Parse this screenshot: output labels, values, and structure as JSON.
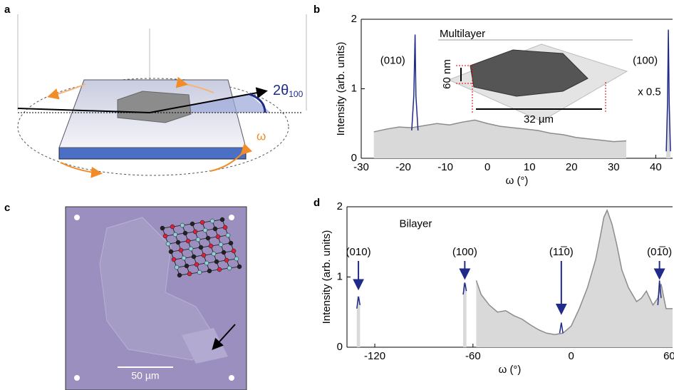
{
  "panels": {
    "a": {
      "label": "a",
      "angle_label": "2θ",
      "angle_subscript": "100",
      "rotation_label": "ω"
    },
    "b": {
      "label": "b",
      "inset": {
        "title": "Multilayer",
        "height_label": "60 nm",
        "width_label": "32 µm"
      }
    },
    "c": {
      "label": "c",
      "scale_bar": "50 µm"
    },
    "d": {
      "label": "d"
    }
  },
  "chart_data": [
    {
      "type": "line",
      "xlabel": "ω (°)",
      "ylabel": "Intensity (arb. units)",
      "xlim": [
        -30,
        44
      ],
      "xticks": [
        -30,
        -20,
        -10,
        0,
        10,
        20,
        30,
        40
      ],
      "ylim": [
        0,
        2
      ],
      "yticks": [
        0,
        1,
        2
      ],
      "series": [
        {
          "color": "#8c8c8c",
          "fill": "#d9d9d9",
          "x": [
            -27,
            -24,
            -21,
            -18,
            -15,
            -12,
            -9,
            -6,
            -3,
            0,
            3,
            6,
            9,
            12,
            15,
            18,
            21,
            24,
            27,
            30,
            33
          ],
          "values": [
            0.38,
            0.42,
            0.45,
            0.44,
            0.47,
            0.5,
            0.48,
            0.52,
            0.55,
            0.5,
            0.46,
            0.44,
            0.42,
            0.4,
            0.36,
            0.34,
            0.3,
            0.28,
            0.26,
            0.24,
            0.25
          ]
        },
        {
          "color": "#1f2a8a",
          "x": [
            -18,
            -17.5,
            -17.2,
            -17,
            -16.5
          ],
          "values": [
            0.4,
            0.9,
            1.78,
            0.9,
            0.4
          ]
        },
        {
          "color": "#1f2a8a",
          "fill": "#d9d9d9",
          "x": [
            42.5,
            42.8,
            43,
            43.2,
            43.5
          ],
          "values": [
            0.1,
            0.8,
            1.85,
            0.8,
            0.1
          ]
        }
      ],
      "annotations": [
        {
          "text": "(010)",
          "x": -22.5,
          "y": 1.4
        },
        {
          "text": "(100)",
          "x": 37.5,
          "y": 1.4
        },
        {
          "text": "x 0.5",
          "x": 38.5,
          "y": 0.95
        }
      ]
    },
    {
      "type": "line",
      "xlabel": "ω (°)",
      "ylabel": "Intensity (arb. units)",
      "xlim": [
        -137,
        62
      ],
      "xticks": [
        -120,
        -60,
        0,
        60
      ],
      "ylim": [
        0,
        2
      ],
      "yticks": [
        0,
        1,
        2
      ],
      "series": [
        {
          "color": "#8c8c8c",
          "fill": "#d9d9d9",
          "x": [
            -58,
            -55,
            -50,
            -45,
            -40,
            -35,
            -30,
            -25,
            -20,
            -15,
            -10,
            -5,
            0,
            5,
            10,
            15,
            18,
            20,
            22,
            25,
            28,
            31,
            35,
            40,
            43,
            46,
            50,
            53,
            55,
            58,
            62
          ],
          "values": [
            0.95,
            0.75,
            0.6,
            0.5,
            0.52,
            0.45,
            0.4,
            0.32,
            0.25,
            0.2,
            0.18,
            0.2,
            0.3,
            0.55,
            0.85,
            1.25,
            1.6,
            1.85,
            1.95,
            1.75,
            1.45,
            1.1,
            0.85,
            0.65,
            0.7,
            0.8,
            0.6,
            0.7,
            0.9,
            0.55,
            0.55
          ]
        },
        {
          "color": "#d9d9d9",
          "fill": "#d9d9d9",
          "x": [
            -131,
            -129
          ],
          "values": [
            0.72,
            0.72
          ]
        },
        {
          "color": "#d9d9d9",
          "fill": "#d9d9d9",
          "x": [
            -66,
            -64
          ],
          "values": [
            0.9,
            0.9
          ]
        },
        {
          "color": "#1f2a8a",
          "x": [
            -131,
            -130,
            -129
          ],
          "values": [
            0.55,
            0.72,
            0.6
          ]
        },
        {
          "color": "#1f2a8a",
          "x": [
            -66,
            -65,
            -64
          ],
          "values": [
            0.75,
            0.92,
            0.8
          ]
        },
        {
          "color": "#1f2a8a",
          "x": [
            -7,
            -6,
            -5
          ],
          "values": [
            0.2,
            0.35,
            0.2
          ]
        },
        {
          "color": "#1f2a8a",
          "x": [
            53,
            54,
            55
          ],
          "values": [
            0.6,
            0.95,
            0.7
          ]
        }
      ],
      "annotations": [
        {
          "text": "Bilayer",
          "x": -95,
          "y": 1.75
        },
        {
          "text": "(010)",
          "x": -130,
          "y": 1.35,
          "arrow_y": 0.85
        },
        {
          "text": "(100)",
          "x": -65,
          "y": 1.35,
          "arrow_y": 1.0
        },
        {
          "text": "(11̅0)",
          "x": -6,
          "y": 1.35,
          "arrow_y": 0.5
        },
        {
          "text": "(01̅0)",
          "x": 54,
          "y": 1.35,
          "arrow_y": 1.0
        }
      ]
    }
  ]
}
